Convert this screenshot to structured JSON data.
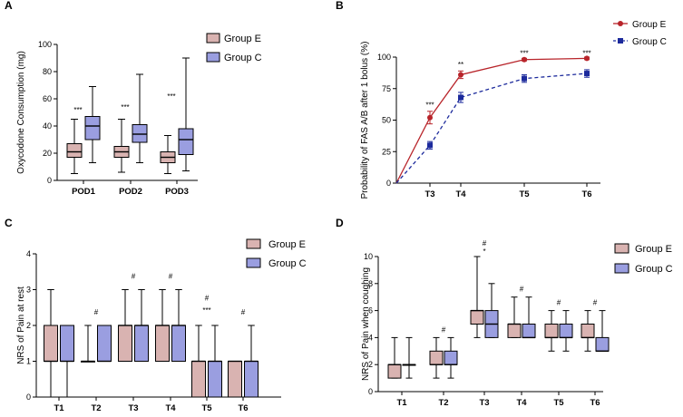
{
  "colors": {
    "e_fill": "#d9b3b1",
    "c_fill": "#9a9ee0",
    "e_line": "#b8242a",
    "c_line": "#1c2a9c",
    "axis": "#000000"
  },
  "chart_data": [
    {
      "panel": "A",
      "type": "box",
      "ylabel": "Oxycodone Consumption (mg)",
      "ylim": [
        0,
        100
      ],
      "yticks": [
        0,
        20,
        40,
        60,
        80,
        100
      ],
      "categories": [
        "POD1",
        "POD2",
        "POD3"
      ],
      "legend": [
        "Group E",
        "Group C"
      ],
      "series": [
        {
          "name": "Group E",
          "boxes": [
            {
              "min": 5,
              "q1": 17,
              "median": 21,
              "q3": 27,
              "max": 45
            },
            {
              "min": 6,
              "q1": 17,
              "median": 21,
              "q3": 25,
              "max": 45
            },
            {
              "min": 5,
              "q1": 13,
              "median": 17,
              "q3": 21,
              "max": 33
            }
          ]
        },
        {
          "name": "Group C",
          "boxes": [
            {
              "min": 13,
              "q1": 30,
              "median": 40,
              "q3": 47,
              "max": 69
            },
            {
              "min": 13,
              "q1": 28,
              "median": 34,
              "q3": 41,
              "max": 78
            },
            {
              "min": 7,
              "q1": 19,
              "median": 30,
              "q3": 38,
              "max": 90
            }
          ]
        }
      ],
      "annotations": [
        {
          "category": "POD1",
          "text": "***",
          "y": 50
        },
        {
          "category": "POD2",
          "text": "***",
          "y": 52
        },
        {
          "category": "POD3",
          "text": "***",
          "y": 60
        }
      ]
    },
    {
      "panel": "B",
      "type": "line",
      "ylabel": "Probability of FAS A/B after 1 bolus (%)",
      "ylim": [
        0,
        100
      ],
      "yticks": [
        0,
        25,
        50,
        75,
        100
      ],
      "x_labels": [
        "T3",
        "T4",
        "T5",
        "T6"
      ],
      "x_values": [
        0,
        5,
        10,
        30,
        45
      ],
      "legend": [
        "Group E",
        "Group C"
      ],
      "series": [
        {
          "name": "Group E",
          "y": [
            0,
            52,
            86,
            98,
            99
          ],
          "err": [
            0,
            5,
            3,
            1,
            1
          ]
        },
        {
          "name": "Group C",
          "y": [
            0,
            30,
            68,
            83,
            87
          ],
          "err": [
            0,
            3,
            4,
            3,
            3
          ]
        }
      ],
      "annotations": [
        {
          "x": 5,
          "text": "***",
          "y": 60
        },
        {
          "x": 10,
          "text": "**",
          "y": 92
        },
        {
          "x": 30,
          "text": "***",
          "y": 101
        },
        {
          "x": 45,
          "text": "***",
          "y": 101
        }
      ]
    },
    {
      "panel": "C",
      "type": "box",
      "ylabel": "NRS of Pain at rest",
      "ylim": [
        0,
        4
      ],
      "yticks": [
        0,
        1,
        2,
        3,
        4
      ],
      "categories": [
        "T1",
        "T2",
        "T3",
        "T4",
        "T5",
        "T6"
      ],
      "legend": [
        "Group E",
        "Group C"
      ],
      "series": [
        {
          "name": "Group E",
          "boxes": [
            {
              "min": 0,
              "q1": 1,
              "median": 1,
              "q3": 2,
              "max": 3
            },
            {
              "min": 1,
              "q1": 1,
              "median": 1,
              "q3": 1,
              "max": 2
            },
            {
              "min": 1,
              "q1": 1,
              "median": 2,
              "q3": 2,
              "max": 3
            },
            {
              "min": 1,
              "q1": 1,
              "median": 2,
              "q3": 2,
              "max": 3
            },
            {
              "min": 0,
              "q1": 0,
              "median": 1,
              "q3": 1,
              "max": 2
            },
            {
              "min": 0,
              "q1": 0,
              "median": 1,
              "q3": 1,
              "max": 1
            }
          ]
        },
        {
          "name": "Group C",
          "boxes": [
            {
              "min": 0,
              "q1": 1,
              "median": 1,
              "q3": 2,
              "max": 2
            },
            {
              "min": 1,
              "q1": 1,
              "median": 1,
              "q3": 2,
              "max": 2
            },
            {
              "min": 1,
              "q1": 1,
              "median": 2,
              "q3": 2,
              "max": 3
            },
            {
              "min": 1,
              "q1": 1,
              "median": 2,
              "q3": 2,
              "max": 3
            },
            {
              "min": 0,
              "q1": 0,
              "median": 1,
              "q3": 1,
              "max": 2
            },
            {
              "min": 0,
              "q1": 0,
              "median": 1,
              "q3": 1,
              "max": 2
            }
          ]
        }
      ],
      "annotations": [
        {
          "category": "T2",
          "text": "#",
          "y": 2.3
        },
        {
          "category": "T3",
          "text": "#",
          "y": 3.3
        },
        {
          "category": "T4",
          "text": "#",
          "y": 3.3
        },
        {
          "category": "T5",
          "text": "#",
          "y": 2.7
        },
        {
          "category": "T5",
          "text": "***",
          "y": 2.35
        },
        {
          "category": "T6",
          "text": "#",
          "y": 2.3
        }
      ]
    },
    {
      "panel": "D",
      "type": "box",
      "ylabel": "NRS of Pain when coughing",
      "ylim": [
        0,
        10
      ],
      "yticks": [
        0,
        2,
        4,
        6,
        8,
        10
      ],
      "categories": [
        "T1",
        "T2",
        "T3",
        "T4",
        "T5",
        "T6"
      ],
      "legend": [
        "Group E",
        "Group C"
      ],
      "series": [
        {
          "name": "Group E",
          "boxes": [
            {
              "min": 1,
              "q1": 1,
              "median": 2,
              "q3": 2,
              "max": 4
            },
            {
              "min": 1,
              "q1": 2,
              "median": 2,
              "q3": 3,
              "max": 4
            },
            {
              "min": 4,
              "q1": 5,
              "median": 6,
              "q3": 6,
              "max": 10
            },
            {
              "min": 4,
              "q1": 4,
              "median": 5,
              "q3": 5,
              "max": 7
            },
            {
              "min": 3,
              "q1": 4,
              "median": 4,
              "q3": 5,
              "max": 6
            },
            {
              "min": 3,
              "q1": 4,
              "median": 4,
              "q3": 5,
              "max": 6
            }
          ]
        },
        {
          "name": "Group C",
          "boxes": [
            {
              "min": 1,
              "q1": 2,
              "median": 2,
              "q3": 2,
              "max": 4
            },
            {
              "min": 1,
              "q1": 2,
              "median": 2,
              "q3": 3,
              "max": 4
            },
            {
              "min": 4,
              "q1": 4,
              "median": 5,
              "q3": 6,
              "max": 8
            },
            {
              "min": 4,
              "q1": 4,
              "median": 4,
              "q3": 5,
              "max": 7
            },
            {
              "min": 3,
              "q1": 4,
              "median": 4,
              "q3": 5,
              "max": 6
            },
            {
              "min": 3,
              "q1": 3,
              "median": 3,
              "q3": 4,
              "max": 6
            }
          ]
        }
      ],
      "annotations": [
        {
          "category": "T2",
          "text": "#",
          "y": 4.4
        },
        {
          "category": "T3",
          "text": "#",
          "y": 10.8
        },
        {
          "category": "T3",
          "text": "*",
          "y": 10.2
        },
        {
          "category": "T4",
          "text": "#",
          "y": 7.4
        },
        {
          "category": "T5",
          "text": "#",
          "y": 6.4
        },
        {
          "category": "T6",
          "text": "#",
          "y": 6.4
        }
      ]
    }
  ]
}
